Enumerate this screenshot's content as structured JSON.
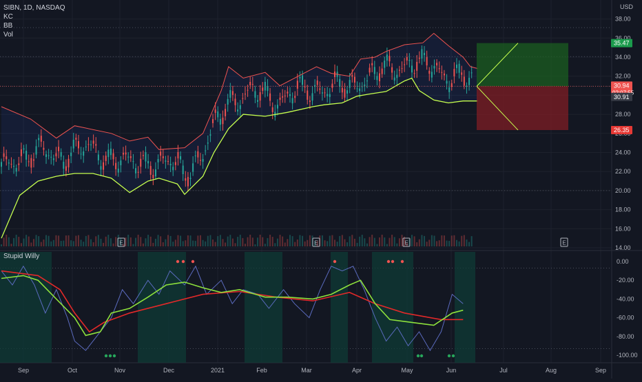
{
  "header": {
    "symbol_line": "SIBN, 1D, NASDAQ",
    "indicators": [
      "KC",
      "BB",
      "Vol"
    ],
    "currency": "USD",
    "oscillator_name": "Stupid Willy"
  },
  "colors": {
    "background": "#131722",
    "grid": "#1e222d",
    "text": "#b2b5be",
    "candle_up": "#26a69a",
    "candle_down": "#ef5350",
    "upper_band": "#ef5350",
    "lower_band": "#c6ff4e",
    "williams": "#5b6bbf",
    "slow_ma": "#e32929",
    "fast_ma": "#8ee23c",
    "profit_zone": "#1b5e20",
    "loss_zone": "#7f1d24",
    "arrow": "#c6ff4e"
  },
  "price_labels": {
    "target": "35.47",
    "current": "30.94",
    "countdown": "02:07:55",
    "close": "30.91",
    "stop": "26.35"
  },
  "earnings_marker": "E",
  "chart_data": [
    {
      "type": "candlestick",
      "title": "SIBN, 1D, NASDAQ",
      "ylabel": "USD",
      "ylim": [
        14,
        39
      ],
      "y_ticks": [
        "38.00",
        "36.00",
        "34.00",
        "32.00",
        "30.00",
        "28.00",
        "26.00",
        "24.00",
        "22.00",
        "20.00",
        "18.00",
        "16.00",
        "14.00"
      ],
      "x_ticks": [
        "Sep",
        "Oct",
        "Nov",
        "Dec",
        "2021",
        "Feb",
        "Mar",
        "Apr",
        "May",
        "Jun",
        "Jul",
        "Aug",
        "Sep"
      ],
      "grid": true,
      "approx_close_by_month": [
        {
          "x": "Sep",
          "close": 21.0
        },
        {
          "x": "Oct",
          "close": 23.5
        },
        {
          "x": "Nov",
          "close": 20.3
        },
        {
          "x": "Dec",
          "close": 22.8
        },
        {
          "x": "2021",
          "close": 30.5
        },
        {
          "x": "Feb",
          "close": 30.2
        },
        {
          "x": "Mar",
          "close": 31.3
        },
        {
          "x": "Apr",
          "close": 32.5
        },
        {
          "x": "May",
          "close": 31.0
        },
        {
          "x": "Jun",
          "close": 30.9
        }
      ],
      "upper_band_path": [
        [
          0,
          28.8
        ],
        [
          0.08,
          27.5
        ],
        [
          0.15,
          25.5
        ],
        [
          0.2,
          26.8
        ],
        [
          0.3,
          26.0
        ],
        [
          0.35,
          25.2
        ],
        [
          0.4,
          25.6
        ],
        [
          0.43,
          24.3
        ],
        [
          0.5,
          24.5
        ],
        [
          0.55,
          26.0
        ],
        [
          0.6,
          30.5
        ],
        [
          0.62,
          33.0
        ],
        [
          0.66,
          31.8
        ],
        [
          0.72,
          32.4
        ],
        [
          0.76,
          31.0
        ],
        [
          0.82,
          32.2
        ],
        [
          0.86,
          33.0
        ],
        [
          0.9,
          32.3
        ],
        [
          0.95,
          32.0
        ],
        [
          0.98,
          33.8
        ],
        [
          1.02,
          34.0
        ],
        [
          1.05,
          34.6
        ],
        [
          1.1,
          35.3
        ],
        [
          1.15,
          35.5
        ],
        [
          1.18,
          36.5
        ],
        [
          1.22,
          35.2
        ],
        [
          1.26,
          34.0
        ],
        [
          1.28,
          33.0
        ],
        [
          1.3,
          32.8
        ]
      ],
      "lower_band_path": [
        [
          0,
          15.0
        ],
        [
          0.05,
          19.5
        ],
        [
          0.1,
          21.0
        ],
        [
          0.15,
          21.5
        ],
        [
          0.2,
          21.8
        ],
        [
          0.25,
          21.8
        ],
        [
          0.3,
          21.3
        ],
        [
          0.35,
          19.8
        ],
        [
          0.4,
          21.0
        ],
        [
          0.43,
          21.3
        ],
        [
          0.48,
          20.7
        ],
        [
          0.5,
          19.6
        ],
        [
          0.55,
          21.5
        ],
        [
          0.58,
          24.0
        ],
        [
          0.62,
          26.5
        ],
        [
          0.66,
          28.0
        ],
        [
          0.72,
          27.8
        ],
        [
          0.78,
          28.2
        ],
        [
          0.85,
          28.8
        ],
        [
          0.88,
          29.0
        ],
        [
          0.93,
          29.2
        ],
        [
          0.97,
          29.9
        ],
        [
          1.0,
          30.1
        ],
        [
          1.05,
          30.4
        ],
        [
          1.1,
          31.5
        ],
        [
          1.12,
          31.8
        ],
        [
          1.14,
          30.5
        ],
        [
          1.18,
          29.5
        ],
        [
          1.22,
          29.2
        ],
        [
          1.26,
          29.4
        ],
        [
          1.3,
          29.4
        ]
      ],
      "earnings_dates": [
        "Nov",
        "Mar",
        "May",
        "Aug"
      ],
      "trade_setup": {
        "entry": 30.94,
        "target": 35.47,
        "stop": 26.35
      }
    },
    {
      "type": "line",
      "title": "Stupid Willy",
      "ylim": [
        -105,
        5
      ],
      "y_ticks": [
        "0.00",
        "-20.00",
        "-40.00",
        "-60.00",
        "-80.00",
        "-100.00"
      ],
      "x_ticks": [
        "Sep",
        "Oct",
        "Nov",
        "Dec",
        "2021",
        "Feb",
        "Mar",
        "Apr",
        "May",
        "Jun",
        "Jul",
        "Aug",
        "Sep"
      ],
      "series": [
        {
          "key": "williams",
          "points": [
            [
              0,
              -10
            ],
            [
              0.03,
              -25
            ],
            [
              0.06,
              -5
            ],
            [
              0.09,
              -25
            ],
            [
              0.12,
              -55
            ],
            [
              0.15,
              -30
            ],
            [
              0.18,
              -60
            ],
            [
              0.2,
              -85
            ],
            [
              0.23,
              -95
            ],
            [
              0.26,
              -80
            ],
            [
              0.3,
              -60
            ],
            [
              0.33,
              -30
            ],
            [
              0.36,
              -45
            ],
            [
              0.4,
              -20
            ],
            [
              0.43,
              -35
            ],
            [
              0.46,
              -10
            ],
            [
              0.5,
              -25
            ],
            [
              0.53,
              -5
            ],
            [
              0.56,
              -35
            ],
            [
              0.6,
              -20
            ],
            [
              0.63,
              -45
            ],
            [
              0.66,
              -30
            ],
            [
              0.7,
              -35
            ],
            [
              0.73,
              -50
            ],
            [
              0.77,
              -30
            ],
            [
              0.8,
              -45
            ],
            [
              0.84,
              -60
            ],
            [
              0.87,
              -30
            ],
            [
              0.9,
              -5
            ],
            [
              0.93,
              -10
            ],
            [
              0.96,
              -5
            ],
            [
              0.99,
              -30
            ],
            [
              1.02,
              -60
            ],
            [
              1.05,
              -85
            ],
            [
              1.08,
              -70
            ],
            [
              1.11,
              -90
            ],
            [
              1.14,
              -75
            ],
            [
              1.17,
              -95
            ],
            [
              1.2,
              -75
            ],
            [
              1.23,
              -35
            ],
            [
              1.26,
              -45
            ]
          ]
        },
        {
          "key": "slow_ma",
          "points": [
            [
              0,
              -10
            ],
            [
              0.1,
              -15
            ],
            [
              0.16,
              -30
            ],
            [
              0.2,
              -55
            ],
            [
              0.24,
              -75
            ],
            [
              0.28,
              -65
            ],
            [
              0.35,
              -55
            ],
            [
              0.45,
              -45
            ],
            [
              0.55,
              -35
            ],
            [
              0.65,
              -32
            ],
            [
              0.75,
              -38
            ],
            [
              0.85,
              -42
            ],
            [
              0.95,
              -33
            ],
            [
              1.02,
              -45
            ],
            [
              1.1,
              -55
            ],
            [
              1.2,
              -62
            ],
            [
              1.26,
              -62
            ]
          ]
        },
        {
          "key": "fast_ma",
          "points": [
            [
              0,
              -18
            ],
            [
              0.06,
              -15
            ],
            [
              0.1,
              -20
            ],
            [
              0.15,
              -40
            ],
            [
              0.2,
              -60
            ],
            [
              0.23,
              -79
            ],
            [
              0.27,
              -75
            ],
            [
              0.3,
              -55
            ],
            [
              0.35,
              -50
            ],
            [
              0.4,
              -38
            ],
            [
              0.45,
              -25
            ],
            [
              0.5,
              -22
            ],
            [
              0.55,
              -28
            ],
            [
              0.6,
              -33
            ],
            [
              0.65,
              -30
            ],
            [
              0.72,
              -38
            ],
            [
              0.78,
              -38
            ],
            [
              0.85,
              -40
            ],
            [
              0.9,
              -35
            ],
            [
              0.95,
              -25
            ],
            [
              0.98,
              -20
            ],
            [
              1.02,
              -45
            ],
            [
              1.06,
              -62
            ],
            [
              1.12,
              -65
            ],
            [
              1.18,
              -68
            ],
            [
              1.23,
              -55
            ],
            [
              1.26,
              -52
            ]
          ]
        }
      ],
      "signal_dots": [
        {
          "at": "Nov",
          "y": -100,
          "color": "green"
        },
        {
          "at": "Jun",
          "y": -100,
          "color": "green"
        },
        {
          "at": "2021",
          "y": 0,
          "color": "red"
        },
        {
          "at": "Apr",
          "y": 0,
          "color": "red"
        },
        {
          "at": "May",
          "y": 0,
          "color": "red"
        }
      ]
    }
  ]
}
